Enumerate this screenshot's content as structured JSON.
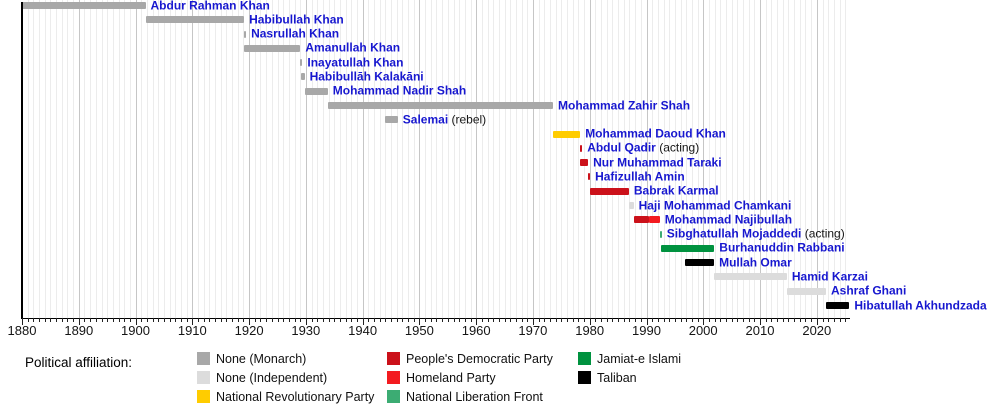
{
  "chart_data": {
    "type": "timeline",
    "x_axis": {
      "unit": "year",
      "min": 1880,
      "max": 2025.5,
      "minor_tick_every": 1,
      "label_every": 10,
      "decade_labels": [
        "1880",
        "1890",
        "1900",
        "1910",
        "1920",
        "1930",
        "1940",
        "1950",
        "1960",
        "1970",
        "1980",
        "1990",
        "2000",
        "2010",
        "2020"
      ]
    },
    "palette": {
      "monarch": "#a8a8a8",
      "independent": "#dcdcdc",
      "nrp": "#ffcc00",
      "pdpa": "#cb111a",
      "homeland": "#f31b20",
      "nlf": "#3cac73",
      "jamiat": "#00923f",
      "taliban": "#000000"
    },
    "label_color": "#1717cf",
    "rows": [
      {
        "name": "Abdur Rahman Khan",
        "start": 1880.0,
        "end": 1901.75,
        "color": "monarch"
      },
      {
        "name": "Habibullah Khan",
        "start": 1901.75,
        "end": 1919.12,
        "color": "monarch"
      },
      {
        "name": "Nasrullah Khan",
        "start": 1919.12,
        "end": 1919.2,
        "color": "monarch"
      },
      {
        "name": "Amanullah Khan",
        "start": 1919.12,
        "end": 1929.04,
        "color": "monarch"
      },
      {
        "name": "Inayatullah Khan",
        "start": 1929.04,
        "end": 1929.1,
        "color": "monarch"
      },
      {
        "name": "Habibullāh Kalakāni",
        "start": 1929.05,
        "end": 1929.78,
        "color": "monarch"
      },
      {
        "name": "Mohammad Nadir Shah",
        "start": 1929.78,
        "end": 1933.86,
        "color": "monarch"
      },
      {
        "name": "Mohammad Zahir Shah",
        "start": 1933.86,
        "end": 1973.54,
        "color": "monarch"
      },
      {
        "name": "Salemai",
        "suffix": " (rebel)",
        "start": 1944.0,
        "end": 1946.2,
        "color": "monarch"
      },
      {
        "name": "Mohammad Daoud Khan",
        "start": 1973.54,
        "end": 1978.32,
        "color": "nrp"
      },
      {
        "name": "Abdul Qadir",
        "suffix": " (acting)",
        "start": 1978.32,
        "end": 1978.42,
        "color": "pdpa"
      },
      {
        "name": "Nur Muhammad Taraki",
        "start": 1978.33,
        "end": 1979.71,
        "color": "pdpa"
      },
      {
        "name": "Hafizullah Amin",
        "start": 1979.71,
        "end": 1979.99,
        "color": "pdpa"
      },
      {
        "name": "Babrak Karmal",
        "start": 1979.99,
        "end": 1986.9,
        "color": "pdpa"
      },
      {
        "name": "Haji Mohammad Chamkani",
        "start": 1986.9,
        "end": 1987.73,
        "color": "independent"
      },
      {
        "name": "Mohammad Najibullah",
        "segments": [
          {
            "start": 1987.73,
            "end": 1990.52,
            "color": "pdpa"
          },
          {
            "start": 1990.52,
            "end": 1992.33,
            "color": "homeland"
          }
        ]
      },
      {
        "name": "Sibghatullah Mojaddedi",
        "suffix": " (acting)",
        "start": 1992.33,
        "end": 1992.5,
        "color": "nlf"
      },
      {
        "name": "Burhanuddin Rabbani",
        "start": 1992.5,
        "end": 2001.95,
        "color": "jamiat"
      },
      {
        "name": "Mullah Omar",
        "start": 1996.74,
        "end": 2001.92,
        "color": "taliban"
      },
      {
        "name": "Hamid Karzai",
        "start": 2001.95,
        "end": 2014.73,
        "color": "independent"
      },
      {
        "name": "Ashraf Ghani",
        "start": 2014.73,
        "end": 2021.62,
        "color": "independent"
      },
      {
        "name": "Hibatullah Akhundzada",
        "start": 2021.62,
        "end": 2025.75,
        "color": "taliban"
      }
    ],
    "legend": {
      "title": "Political affiliation:",
      "columns": [
        [
          {
            "label": "None (Monarch)",
            "color": "monarch"
          },
          {
            "label": "None (Independent)",
            "color": "independent"
          },
          {
            "label": "National Revolutionary Party",
            "color": "nrp"
          }
        ],
        [
          {
            "label": "People's Democratic Party",
            "color": "pdpa"
          },
          {
            "label": "Homeland Party",
            "color": "homeland"
          },
          {
            "label": "National Liberation Front",
            "color": "nlf"
          }
        ],
        [
          {
            "label": "Jamiat-e Islami",
            "color": "jamiat"
          },
          {
            "label": "Taliban",
            "color": "taliban"
          }
        ]
      ]
    }
  }
}
